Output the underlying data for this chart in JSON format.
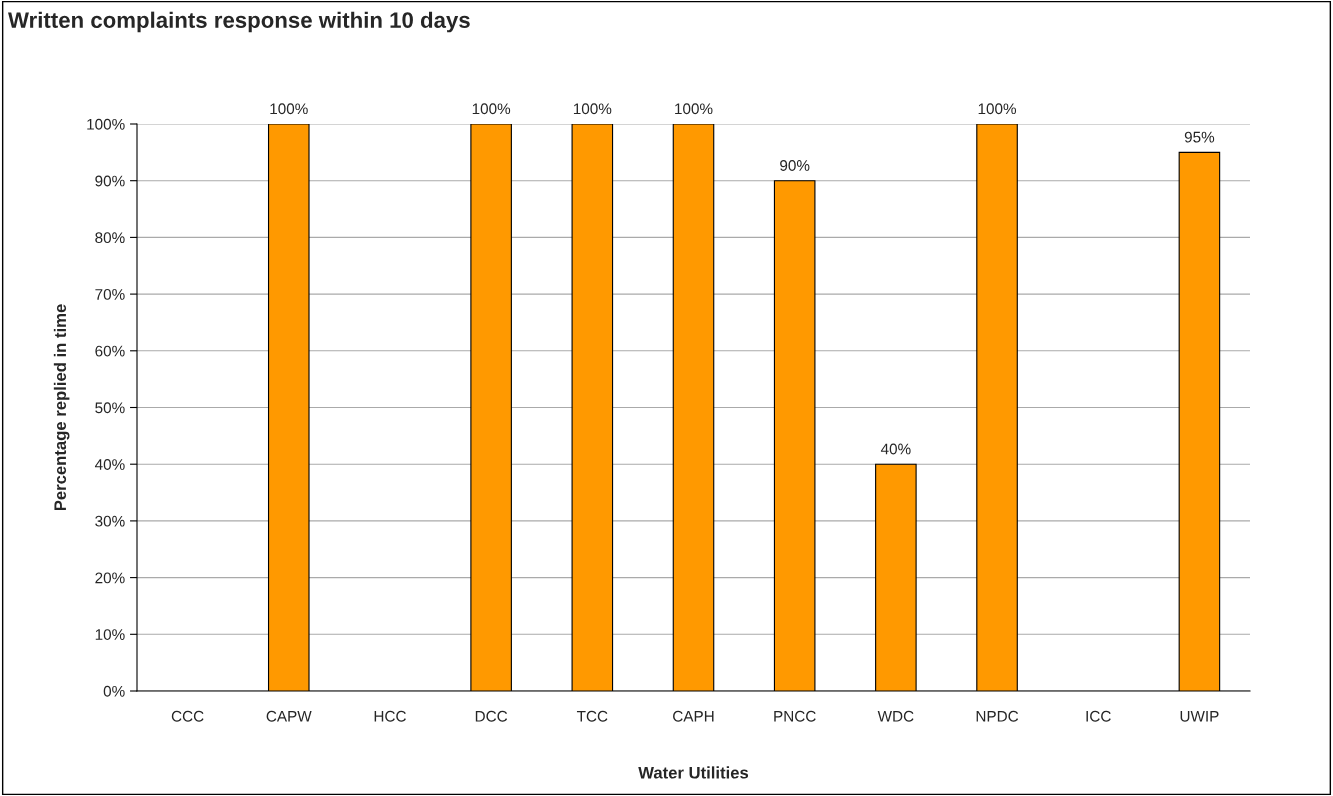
{
  "chart_data": {
    "type": "bar",
    "title": "Written complaints response within 10 days",
    "xlabel": "Water Utilities",
    "ylabel": "Percentage replied in time",
    "categories": [
      "CCC",
      "CAPW",
      "HCC",
      "DCC",
      "TCC",
      "CAPH",
      "PNCC",
      "WDC",
      "NPDC",
      "ICC",
      "UWIP"
    ],
    "values": [
      null,
      100,
      null,
      100,
      100,
      100,
      90,
      40,
      100,
      null,
      95
    ],
    "value_labels": [
      null,
      "100%",
      null,
      "100%",
      "100%",
      "100%",
      "90%",
      "40%",
      "100%",
      null,
      "95%"
    ],
    "color": "#ff9900",
    "ylim": [
      0,
      100
    ],
    "yticks": [
      {
        "value": 0,
        "label": "0%"
      },
      {
        "value": 10,
        "label": "10%"
      },
      {
        "value": 20,
        "label": "20%"
      },
      {
        "value": 30,
        "label": "30%"
      },
      {
        "value": 40,
        "label": "40%"
      },
      {
        "value": 50,
        "label": "50%"
      },
      {
        "value": 60,
        "label": "60%"
      },
      {
        "value": 70,
        "label": "70%"
      },
      {
        "value": 80,
        "label": "80%"
      },
      {
        "value": 90,
        "label": "90%"
      },
      {
        "value": 100,
        "label": "100%"
      }
    ],
    "grid": "y"
  }
}
